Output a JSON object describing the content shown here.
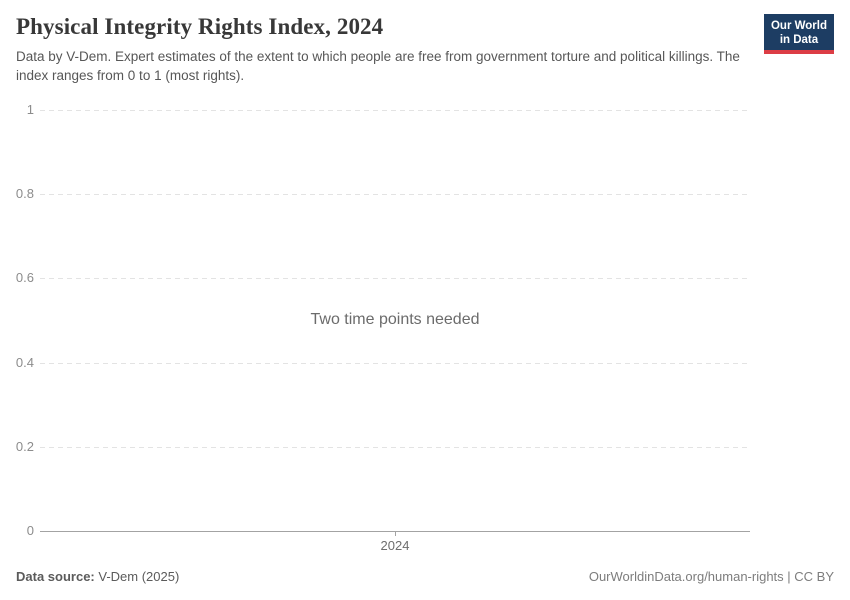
{
  "header": {
    "title": "Physical Integrity Rights Index, 2024",
    "subtitle": "Data by V-Dem. Expert estimates of the extent to which people are free from government torture and political killings. The index ranges from 0 to 1 (most rights).",
    "logo": {
      "line1": "Our World",
      "line2": "in Data",
      "bg_color": "#1d3d63",
      "accent_color": "#dc3d45"
    }
  },
  "chart_data": {
    "type": "line",
    "title": "Physical Integrity Rights Index, 2024",
    "xlabel": "",
    "ylabel": "",
    "ylim": [
      0,
      1
    ],
    "y_ticks": [
      1,
      0.8,
      0.6,
      0.4,
      0.2,
      0
    ],
    "y_tick_labels": [
      "1",
      "0.8",
      "0.6",
      "0.4",
      "0.2",
      "0"
    ],
    "x_ticks": [
      "2024"
    ],
    "grid": true,
    "legend": false,
    "series": [],
    "empty_state_message": "Two time points needed",
    "colors": {
      "gridline": "#e3e3e3",
      "axis_line": "#a3a3a3",
      "tick_label": "#8c8c8c"
    }
  },
  "footer": {
    "source_label": "Data source:",
    "source_value": " V-Dem (2025)",
    "license": "OurWorldinData.org/human-rights | CC BY"
  }
}
